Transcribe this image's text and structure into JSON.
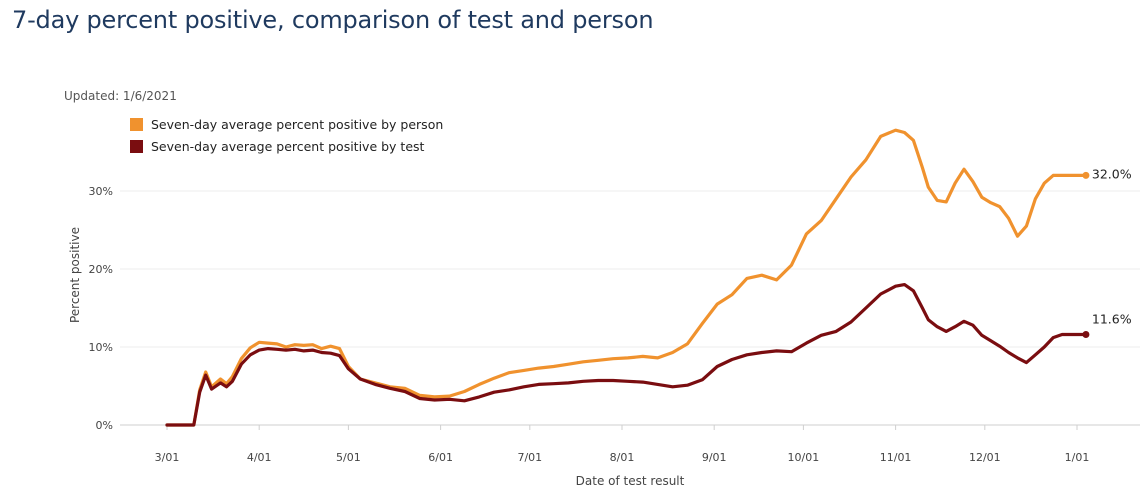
{
  "title": "7-day percent positive, comparison of test and person",
  "chart_data": {
    "type": "line",
    "title": "7-day percent positive, comparison of test and person",
    "updated": "Updated: 1/6/2021",
    "xlabel": "Date of test result",
    "ylabel": "Percent positive",
    "ylim": [
      0,
      40
    ],
    "yticks": [
      0,
      10,
      20,
      30
    ],
    "ytick_labels": [
      "0%",
      "10%",
      "20%",
      "30%"
    ],
    "xlim": [
      0,
      313
    ],
    "xticks": [
      0,
      31,
      61,
      92,
      122,
      153,
      184,
      214,
      245,
      275,
      306
    ],
    "xtick_labels": [
      "3/01",
      "4/01",
      "5/01",
      "6/01",
      "7/01",
      "8/01",
      "9/01",
      "10/01",
      "11/01",
      "12/01",
      "1/01"
    ],
    "grid": true,
    "legend_position": "top-left",
    "colors": {
      "person": "#f0922e",
      "test": "#7a0d10"
    },
    "series": [
      {
        "name": "Seven-day average percent positive by person",
        "key": "person",
        "end_label": "32.0%",
        "x": [
          0,
          4,
          7,
          9,
          11,
          13,
          15,
          18,
          20,
          22,
          25,
          28,
          31,
          34,
          37,
          40,
          43,
          46,
          49,
          52,
          55,
          58,
          61,
          65,
          70,
          75,
          80,
          85,
          90,
          95,
          100,
          105,
          110,
          115,
          120,
          125,
          130,
          135,
          140,
          145,
          150,
          155,
          160,
          165,
          170,
          175,
          180,
          185,
          190,
          195,
          200,
          205,
          210,
          215,
          220,
          225,
          230,
          235,
          240,
          245,
          248,
          251,
          254,
          256,
          259,
          262,
          265,
          268,
          271,
          274,
          277,
          280,
          283,
          286,
          289,
          292,
          295,
          298,
          301,
          304,
          306,
          309
        ],
        "values": [
          0,
          0,
          0,
          0,
          4.5,
          6.8,
          4.9,
          5.9,
          5.3,
          6.2,
          8.5,
          9.9,
          10.6,
          10.5,
          10.4,
          10.0,
          10.3,
          10.2,
          10.3,
          9.8,
          10.1,
          9.8,
          7.5,
          5.9,
          5.4,
          4.9,
          4.7,
          3.8,
          3.6,
          3.7,
          4.3,
          5.2,
          6.0,
          6.7,
          7.0,
          7.3,
          7.5,
          7.8,
          8.1,
          8.3,
          8.5,
          8.6,
          8.8,
          8.6,
          9.3,
          10.4,
          13.0,
          15.5,
          16.7,
          18.8,
          19.2,
          18.6,
          20.5,
          24.5,
          26.2,
          29.0,
          31.8,
          34.0,
          37.0,
          37.8,
          37.5,
          36.5,
          33.0,
          30.5,
          28.8,
          28.6,
          31.0,
          32.8,
          31.2,
          29.2,
          28.5,
          28.0,
          26.5,
          24.2,
          25.5,
          29.0,
          31.0,
          32.0,
          32.0,
          32.0,
          32.0,
          32.0
        ]
      },
      {
        "name": "Seven-day average percent positive by test",
        "key": "test",
        "end_label": "11.6%",
        "x": [
          0,
          4,
          7,
          9,
          11,
          13,
          15,
          18,
          20,
          22,
          25,
          28,
          31,
          34,
          37,
          40,
          43,
          46,
          49,
          52,
          55,
          58,
          61,
          65,
          70,
          75,
          80,
          85,
          90,
          95,
          100,
          105,
          110,
          115,
          120,
          125,
          130,
          135,
          140,
          145,
          150,
          155,
          160,
          165,
          170,
          175,
          180,
          185,
          190,
          195,
          200,
          205,
          210,
          215,
          220,
          225,
          230,
          235,
          240,
          245,
          248,
          251,
          254,
          256,
          259,
          262,
          265,
          268,
          271,
          274,
          277,
          280,
          283,
          286,
          289,
          292,
          295,
          298,
          301,
          304,
          306,
          309
        ],
        "values": [
          0,
          0,
          0,
          0,
          4.2,
          6.4,
          4.6,
          5.4,
          4.9,
          5.6,
          7.8,
          9.0,
          9.6,
          9.8,
          9.7,
          9.6,
          9.7,
          9.5,
          9.6,
          9.3,
          9.2,
          8.9,
          7.2,
          5.9,
          5.2,
          4.7,
          4.3,
          3.4,
          3.2,
          3.3,
          3.1,
          3.6,
          4.2,
          4.5,
          4.9,
          5.2,
          5.3,
          5.4,
          5.6,
          5.7,
          5.7,
          5.6,
          5.5,
          5.2,
          4.9,
          5.1,
          5.8,
          7.5,
          8.4,
          9.0,
          9.3,
          9.5,
          9.4,
          10.5,
          11.5,
          12.0,
          13.2,
          15.0,
          16.8,
          17.8,
          18.0,
          17.2,
          15.0,
          13.5,
          12.6,
          12.0,
          12.6,
          13.3,
          12.8,
          11.5,
          10.8,
          10.1,
          9.3,
          8.6,
          8.0,
          9.0,
          10.0,
          11.2,
          11.6,
          11.6,
          11.6,
          11.6
        ]
      }
    ]
  }
}
